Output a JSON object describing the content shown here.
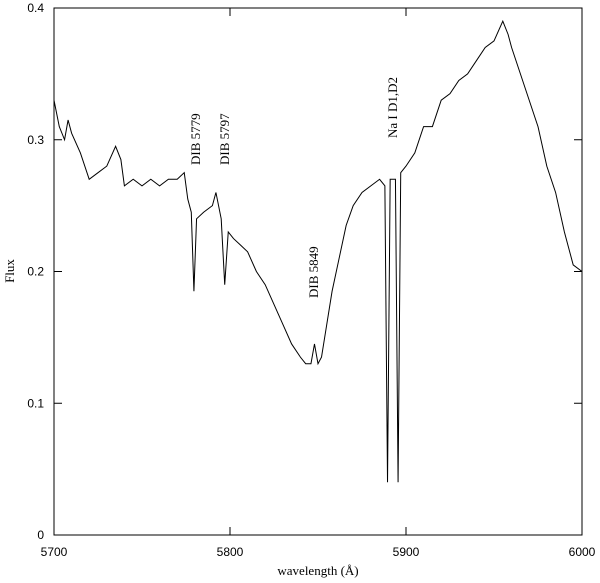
{
  "chart_data": {
    "type": "line",
    "xlabel": "wavelength (Å)",
    "ylabel": "Flux",
    "annotations": [
      "DIB 5779",
      "DIB 5797",
      "DIB 5849",
      "Na I D1,D2"
    ],
    "color": "#000000",
    "xlim": [
      5700,
      6000
    ],
    "ylim": [
      0,
      0.4
    ],
    "xticks": [
      5700,
      5800,
      5900,
      6000
    ],
    "yticks": [
      0,
      0.1,
      0.2,
      0.3,
      0.4
    ],
    "x": [
      5700,
      5703,
      5706,
      5708,
      5710,
      5715,
      5720,
      5725,
      5730,
      5735,
      5738,
      5740,
      5745,
      5750,
      5755,
      5760,
      5765,
      5770,
      5774,
      5776,
      5778,
      5779.5,
      5781,
      5785,
      5790,
      5792,
      5795,
      5797,
      5799,
      5802,
      5806,
      5810,
      5815,
      5820,
      5825,
      5830,
      5835,
      5840,
      5843,
      5846,
      5848,
      5850,
      5852,
      5855,
      5858,
      5862,
      5866,
      5870,
      5875,
      5880,
      5885,
      5888,
      5889.5,
      5891,
      5894,
      5895.5,
      5897,
      5900,
      5905,
      5910,
      5915,
      5920,
      5925,
      5930,
      5935,
      5940,
      5945,
      5950,
      5955,
      5958,
      5960,
      5965,
      5970,
      5975,
      5980,
      5985,
      5990,
      5995,
      6000
    ],
    "values": [
      0.33,
      0.31,
      0.3,
      0.315,
      0.305,
      0.29,
      0.27,
      0.275,
      0.28,
      0.295,
      0.285,
      0.265,
      0.27,
      0.265,
      0.27,
      0.265,
      0.27,
      0.27,
      0.275,
      0.255,
      0.245,
      0.185,
      0.24,
      0.245,
      0.25,
      0.26,
      0.24,
      0.19,
      0.23,
      0.225,
      0.22,
      0.215,
      0.2,
      0.19,
      0.175,
      0.16,
      0.145,
      0.135,
      0.13,
      0.13,
      0.145,
      0.13,
      0.135,
      0.16,
      0.185,
      0.21,
      0.235,
      0.25,
      0.26,
      0.265,
      0.27,
      0.265,
      0.04,
      0.27,
      0.27,
      0.04,
      0.275,
      0.28,
      0.29,
      0.31,
      0.31,
      0.33,
      0.335,
      0.345,
      0.35,
      0.36,
      0.37,
      0.375,
      0.39,
      0.38,
      0.37,
      0.35,
      0.33,
      0.31,
      0.28,
      0.26,
      0.23,
      0.205,
      0.2
    ]
  }
}
